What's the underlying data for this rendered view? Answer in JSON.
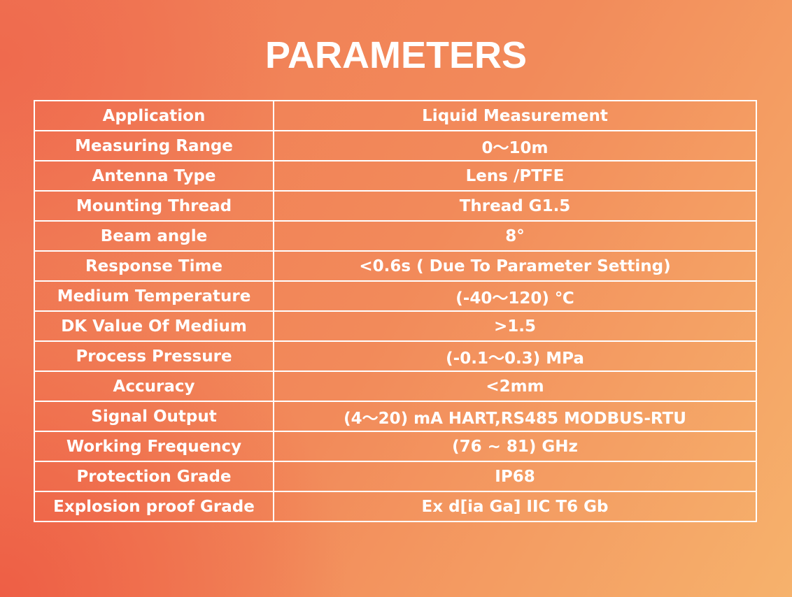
{
  "header": {
    "title": "PARAMETERS"
  },
  "table": {
    "rows": [
      [
        "Application",
        "Liquid Measurement"
      ],
      [
        "Measuring Range",
        "0～10m"
      ],
      [
        "Antenna Type",
        "Lens /PTFE"
      ],
      [
        "Mounting Thread",
        "Thread G1.5"
      ],
      [
        "Beam angle",
        "8°"
      ],
      [
        "Response Time",
        "<0.6s ( Due To Parameter Setting)"
      ],
      [
        "Medium Temperature",
        "(-40～120) ℃"
      ],
      [
        "DK Value Of Medium",
        ">1.5"
      ],
      [
        "Process Pressure",
        "(-0.1～0.3) MPa"
      ],
      [
        "Accuracy",
        "<2mm"
      ],
      [
        "Signal Output",
        "(4～20) mA HART,RS485 MODBUS-RTU"
      ],
      [
        "Working Frequency",
        "(76 ~ 81) GHz"
      ],
      [
        "Protection Grade",
        "IP68"
      ],
      [
        "Explosion proof Grade",
        "Ex d[ia Ga] IIC T6 Gb"
      ]
    ]
  }
}
